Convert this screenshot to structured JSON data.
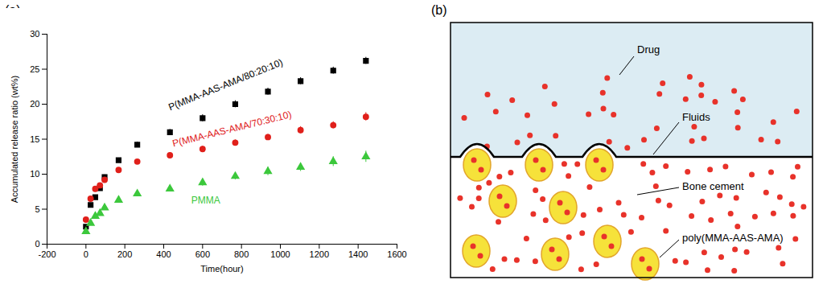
{
  "chart_data": {
    "type": "scatter",
    "panel_label": "(a)",
    "x_label": "Time(hour)",
    "y_label": "Accumulated release ratio (wt%)",
    "x": [
      0,
      24,
      48,
      72,
      96,
      168,
      264,
      432,
      600,
      768,
      936,
      1104,
      1272,
      1440
    ],
    "xlim": [
      -200,
      1600
    ],
    "xticks": [
      -200,
      0,
      200,
      400,
      600,
      800,
      1000,
      1200,
      1400,
      1600
    ],
    "ylim": [
      0,
      30
    ],
    "yticks": [
      0,
      5,
      10,
      15,
      20,
      25,
      30
    ],
    "grid": false,
    "series": [
      {
        "name": "P(MMA-AAS-AMA/80:20:10)",
        "color": "#000000",
        "marker": "square",
        "values": [
          2.5,
          5.6,
          6.7,
          8.0,
          9.6,
          12.0,
          14.2,
          16.0,
          18.0,
          20.0,
          21.8,
          23.3,
          24.8,
          26.2
        ],
        "errors": [
          0.2,
          0.2,
          0.2,
          0.3,
          0.3,
          0.3,
          0.4,
          0.4,
          0.5,
          0.5,
          0.5,
          0.5,
          0.5,
          0.5
        ]
      },
      {
        "name": "P(MMA-AAS-AMA/70:30:10)",
        "color": "#e0201b",
        "marker": "circle",
        "values": [
          3.5,
          6.5,
          7.9,
          8.4,
          9.2,
          10.6,
          11.8,
          12.7,
          13.6,
          14.5,
          15.3,
          16.3,
          17.0,
          18.2
        ],
        "errors": [
          0.2,
          0.2,
          0.2,
          0.3,
          0.3,
          0.3,
          0.3,
          0.4,
          0.4,
          0.4,
          0.4,
          0.5,
          0.5,
          0.6
        ]
      },
      {
        "name": "PMMA",
        "color": "#3cc83c",
        "marker": "triangle",
        "values": [
          1.8,
          3.0,
          4.0,
          4.4,
          5.2,
          6.3,
          7.2,
          7.9,
          8.8,
          9.7,
          10.4,
          11.0,
          11.8,
          12.5
        ],
        "errors": [
          0.2,
          0.2,
          0.2,
          0.2,
          0.3,
          0.3,
          0.3,
          0.4,
          0.5,
          0.5,
          0.6,
          0.6,
          0.7,
          0.8
        ]
      }
    ]
  },
  "diagram": {
    "panel_label": "(b)",
    "labels": {
      "drug": "Drug",
      "fluids": "Fluids",
      "bone_cement": "Bone cement",
      "particle": "poly(MMA-AAS-AMA)"
    }
  }
}
